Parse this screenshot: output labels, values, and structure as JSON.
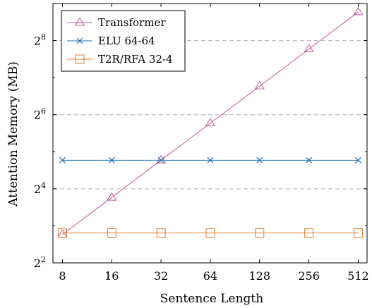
{
  "chart_data": {
    "type": "line",
    "xlabel": "Sentence Length",
    "ylabel": "Attention Memory (MB)",
    "xscale": "log2",
    "yscale": "log2",
    "x": [
      8,
      16,
      32,
      64,
      128,
      256,
      512
    ],
    "x_tick_labels": [
      "8",
      "16",
      "32",
      "64",
      "128",
      "256",
      "512"
    ],
    "y_ticks": [
      {
        "value": 4,
        "base": "2",
        "exp": "2"
      },
      {
        "value": 16,
        "base": "2",
        "exp": "4"
      },
      {
        "value": 64,
        "base": "2",
        "exp": "6"
      },
      {
        "value": 256,
        "base": "2",
        "exp": "8"
      }
    ],
    "xlim": [
      7,
      580
    ],
    "ylim": [
      4,
      512
    ],
    "grid": "horizontal dashed at major y ticks",
    "legend_position": "top-left",
    "series": [
      {
        "name": "Transformer",
        "color": "#c2579a",
        "marker": "triangle",
        "values": [
          6.8,
          13.6,
          27.3,
          54.6,
          109.1,
          218.3,
          436.6
        ]
      },
      {
        "name": "ELU 64-64",
        "color": "#1f6fb3",
        "marker": "x",
        "values": [
          27.3,
          27.3,
          27.3,
          27.3,
          27.3,
          27.3,
          27.3
        ]
      },
      {
        "name": "T2R/RFA 32-4",
        "color": "#e07b28",
        "marker": "square",
        "values": [
          7.0,
          7.0,
          7.0,
          7.0,
          7.0,
          7.0,
          7.0
        ]
      }
    ]
  }
}
